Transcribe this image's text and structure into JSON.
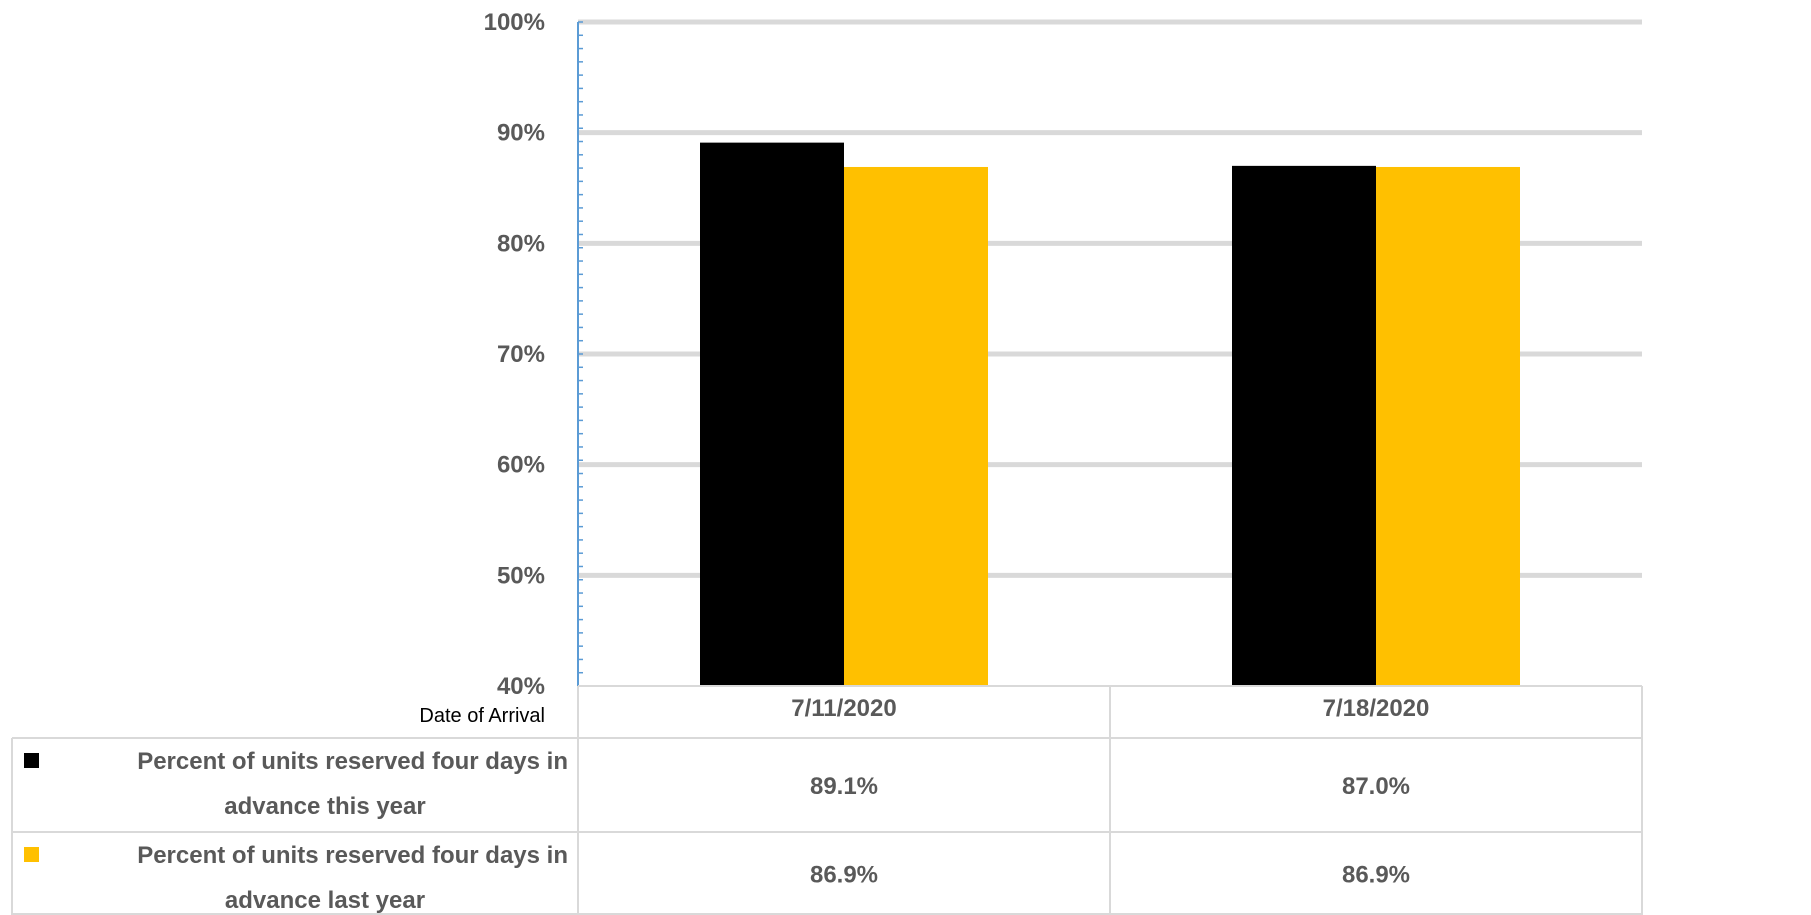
{
  "chart_data": {
    "type": "bar",
    "categories": [
      "7/11/2020",
      "7/18/2020"
    ],
    "series": [
      {
        "name_lines": [
          "Percent of units reserved four days in",
          "advance this year"
        ],
        "values": [
          89.1,
          87.0
        ],
        "labels": [
          "89.1%",
          "87.0%"
        ],
        "color": "#000000"
      },
      {
        "name_lines": [
          "Percent of units reserved four days in",
          "advance last year"
        ],
        "values": [
          86.9,
          86.9
        ],
        "labels": [
          "86.9%",
          "86.9%"
        ],
        "color": "#FFC000"
      }
    ],
    "xlabel": "Date of Arrival",
    "ylabel": "",
    "ylim": [
      40,
      100
    ],
    "yticks": [
      "40%",
      "50%",
      "60%",
      "70%",
      "80%",
      "90%",
      "100%"
    ],
    "grid": true,
    "legend": "data-table",
    "colors": {
      "gridline": "#D9D9D9",
      "axis": "#5B9BD5",
      "table_border": "#D9D9D9",
      "text": "#595959"
    }
  }
}
